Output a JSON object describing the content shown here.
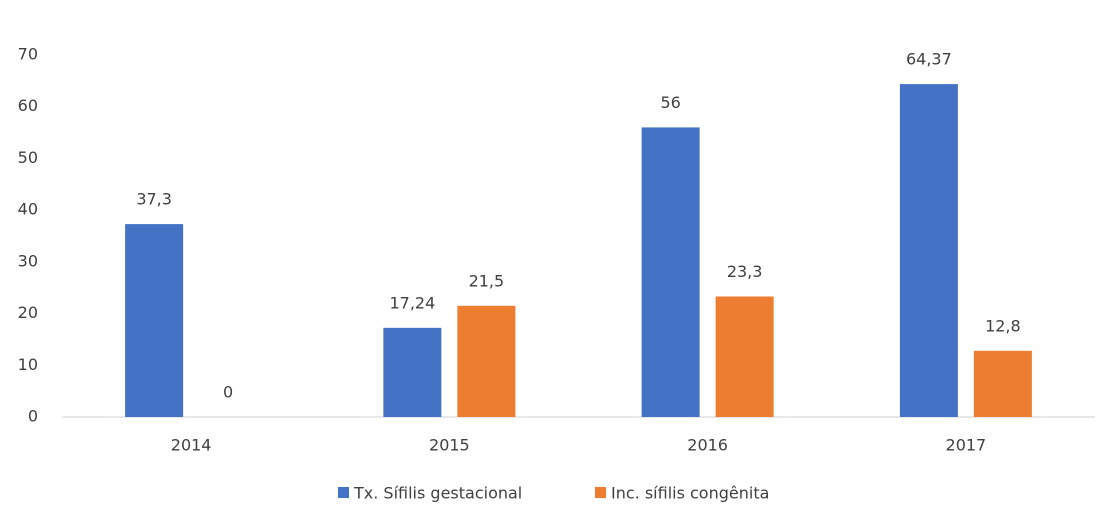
{
  "chart_data": {
    "type": "bar",
    "categories": [
      "2014",
      "2015",
      "2016",
      "2017"
    ],
    "series": [
      {
        "name": "Tx. Sífilis gestacional",
        "color": "#4472c4",
        "values": [
          37.3,
          17.24,
          56,
          64.37
        ],
        "value_labels": [
          "37,3",
          "17,24",
          "56",
          "64,37"
        ]
      },
      {
        "name": "Inc. sífilis congênita",
        "color": "#ed7d31",
        "values": [
          0,
          21.5,
          23.3,
          12.8
        ],
        "value_labels": [
          "0",
          "21,5",
          "23,3",
          "12,8"
        ]
      }
    ],
    "ylim": [
      0,
      70
    ],
    "yticks": [
      0,
      10,
      20,
      30,
      40,
      50,
      60,
      70
    ],
    "grid": false,
    "legend": "bottom"
  }
}
